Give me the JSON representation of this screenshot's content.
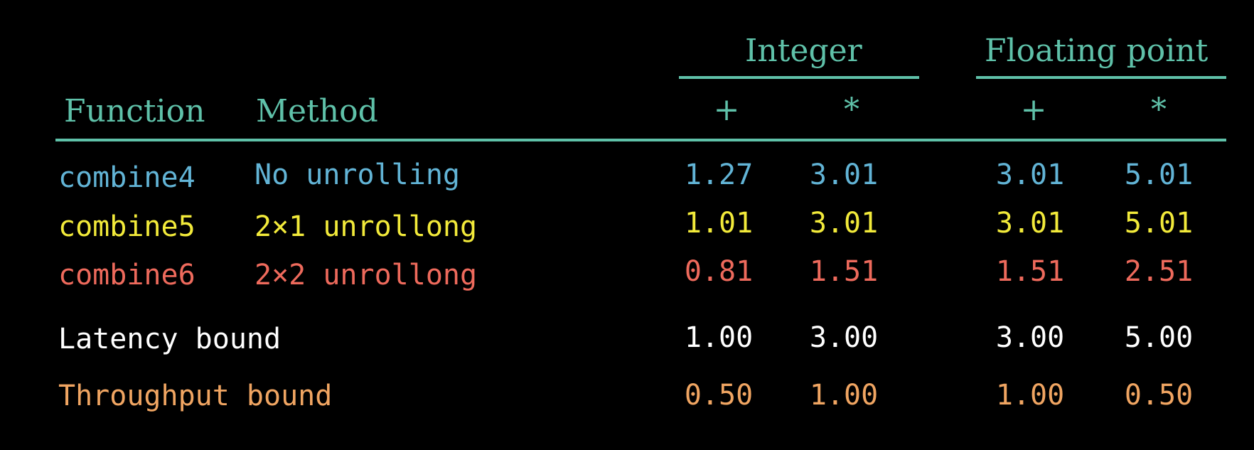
{
  "colors": {
    "header": "#5fc1a9",
    "combine4": "#62b4d6",
    "combine5": "#f2ea3a",
    "combine6": "#ee6a5c",
    "latency": "#ffffff",
    "throughput": "#f0a562"
  },
  "header": {
    "group_integer": "Integer",
    "group_float": "Floating point",
    "col_function": "Function",
    "col_method": "Method",
    "int_add": "+",
    "int_mul": "*",
    "fp_add": "+",
    "fp_mul": "*"
  },
  "rows": [
    {
      "function": "combine4",
      "method": "No unrolling",
      "int_add": "1.27",
      "int_mul": "3.01",
      "fp_add": "3.01",
      "fp_mul": "5.01"
    },
    {
      "function": "combine5",
      "method": "2×1 unrollong",
      "int_add": "1.01",
      "int_mul": "3.01",
      "fp_add": "3.01",
      "fp_mul": "5.01"
    },
    {
      "function": "combine6",
      "method": "2×2 unrollong",
      "int_add": "0.81",
      "int_mul": "1.51",
      "fp_add": "1.51",
      "fp_mul": "2.51"
    }
  ],
  "bounds": [
    {
      "label": "Latency bound",
      "int_add": "1.00",
      "int_mul": "3.00",
      "fp_add": "3.00",
      "fp_mul": "5.00"
    },
    {
      "label": "Throughput bound",
      "int_add": "0.50",
      "int_mul": "1.00",
      "fp_add": "1.00",
      "fp_mul": "0.50"
    }
  ]
}
